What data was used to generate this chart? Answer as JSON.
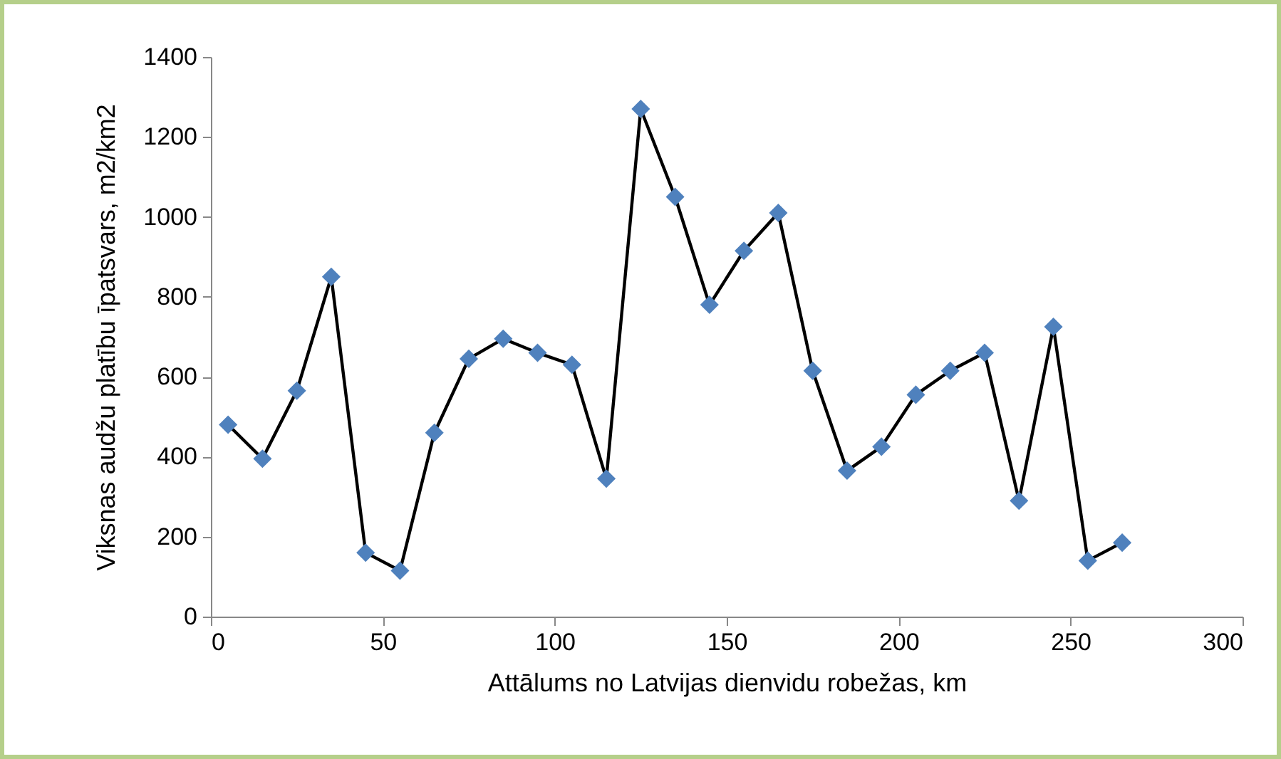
{
  "chart_data": {
    "type": "line",
    "xlabel": "Attālums no Latvijas dienvidu robežas, km",
    "ylabel": "Viksnas audžu platību īpatsvars, m2/km2",
    "x": [
      5,
      15,
      25,
      35,
      45,
      55,
      65,
      75,
      85,
      95,
      105,
      115,
      125,
      135,
      145,
      155,
      165,
      175,
      185,
      195,
      205,
      215,
      225,
      235,
      245,
      255,
      265
    ],
    "series": [
      {
        "color": "#000000",
        "values": [
          480,
          395,
          565,
          850,
          160,
          115,
          460,
          645,
          695,
          660,
          630,
          345,
          1270,
          1050,
          780,
          915,
          1010,
          615,
          365,
          425,
          555,
          615,
          660,
          290,
          725,
          140,
          185
        ]
      }
    ],
    "marker": "diamond",
    "xlim": [
      0,
      300
    ],
    "xticks": [
      0,
      50,
      100,
      150,
      200,
      250,
      300
    ],
    "ylim": [
      0,
      1400
    ],
    "yticks": [
      0,
      200,
      400,
      600,
      800,
      1000,
      1200,
      1400
    ],
    "grid": false
  }
}
